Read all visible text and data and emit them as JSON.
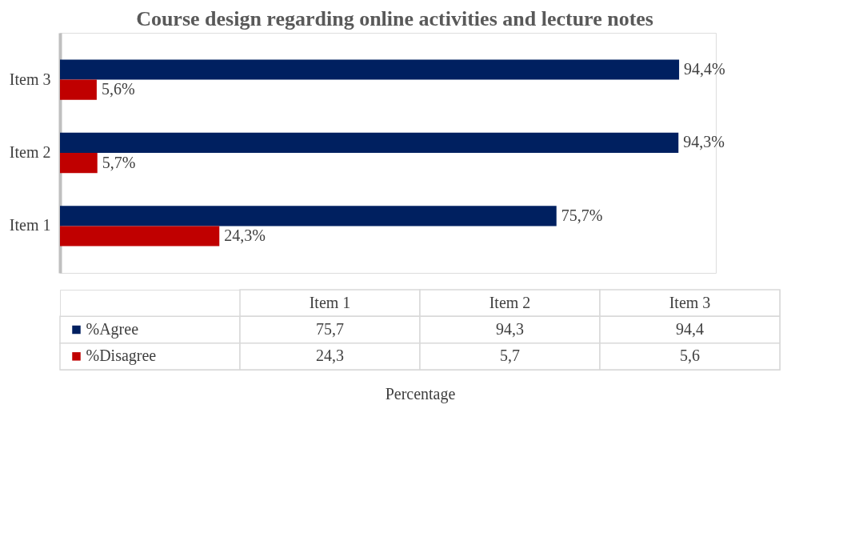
{
  "chart_data": {
    "type": "bar",
    "orientation": "horizontal",
    "title": "Course design regarding online activities and lecture notes",
    "categories": [
      "Item 3",
      "Item 2",
      "Item 1"
    ],
    "legend": "bottom",
    "series": [
      {
        "name": "%Agree",
        "color": "#002060",
        "values": [
          94.4,
          94.3,
          75.7
        ],
        "value_labels": [
          "94,4%",
          "94,3%",
          "75,7%"
        ]
      },
      {
        "name": "%Disagree",
        "color": "#c00000",
        "values": [
          5.6,
          5.7,
          24.3
        ],
        "value_labels": [
          "5,6%",
          "5,7%",
          "24,3%"
        ]
      }
    ],
    "annotations": [
      "75,7",
      "94,3",
      "94,4",
      "24,3",
      "5,7",
      "5,6",
      "Percentage"
    ]
  }
}
